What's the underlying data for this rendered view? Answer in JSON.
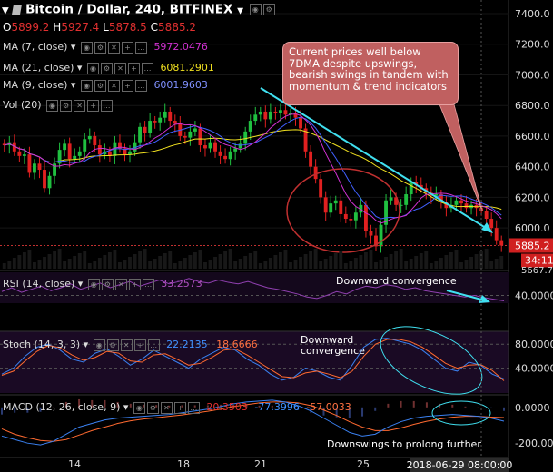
{
  "header": {
    "title": "Bitcoin / Dollar, 240, BITFINEX",
    "ohlc": [
      {
        "k": "O",
        "v": "5899.2"
      },
      {
        "k": "H",
        "v": "5927.4"
      },
      {
        "k": "L",
        "v": "5878.5"
      },
      {
        "k": "C",
        "v": "5885.2"
      }
    ]
  },
  "indicators": [
    {
      "label": "MA (7, close)",
      "value": "5972.0476",
      "color": "#d030d0"
    },
    {
      "label": "MA (21, close)",
      "value": "6081.2901",
      "color": "#f0e020"
    },
    {
      "label": "MA (9, close)",
      "value": "6001.9603",
      "color": "#4060ff"
    },
    {
      "label": "Vol (20)",
      "value": "",
      "color": "#d0d0d0"
    }
  ],
  "callout": "Current prices well below 7DMA despite upswings, bearish swings in tandem with momentum & trend indicators",
  "annotations": {
    "rsi": "Downward convergence",
    "stoch": "Downward convergence",
    "macd": "Downswings to prolong further"
  },
  "colors": {
    "bull": "#20c040",
    "bear": "#e02020",
    "arrow": "#40e0f0",
    "circle": "#c03030"
  },
  "chart_data": [
    {
      "type": "candlestick",
      "pane": "price",
      "ylim": [
        5500,
        7450
      ],
      "yticks": [
        "7400.0",
        "7200.0",
        "7000.0",
        "6800.0",
        "6600.0",
        "6400.0",
        "6200.0",
        "6000.0"
      ],
      "last_price": "5885.2",
      "countdown": "34:11",
      "cut_label": "5667.7",
      "xticks": [
        "14",
        "18",
        "21",
        "25"
      ],
      "time_label": "2018-06-29 08:00:00",
      "close": [
        6540,
        6560,
        6500,
        6470,
        6480,
        6360,
        6420,
        6380,
        6260,
        6340,
        6420,
        6510,
        6550,
        6450,
        6470,
        6500,
        6580,
        6600,
        6540,
        6480,
        6500,
        6470,
        6560,
        6520,
        6480,
        6500,
        6560,
        6660,
        6620,
        6700,
        6690,
        6720,
        6760,
        6700,
        6680,
        6600,
        6590,
        6630,
        6650,
        6540,
        6520,
        6560,
        6500,
        6470,
        6450,
        6500,
        6520,
        6550,
        6630,
        6700,
        6740,
        6760,
        6710,
        6760,
        6750,
        6770,
        6740,
        6750,
        6720,
        6650,
        6500,
        6400,
        6320,
        6200,
        6100,
        6160,
        6180,
        6090,
        6060,
        6050,
        6100,
        6150,
        5980,
        5950,
        5880,
        6020,
        6180,
        6200,
        6150,
        6150,
        6220,
        6300,
        6280,
        6260,
        6230,
        6210,
        6220,
        6170,
        6130,
        6150,
        6180,
        6160,
        6130,
        6150,
        6130,
        6110,
        6060,
        6000,
        5920,
        5885
      ],
      "ma7": 5972.0476,
      "ma21": 6081.2901,
      "ma9": 6001.9603
    },
    {
      "type": "line",
      "pane": "rsi",
      "title": "RSI (14, close)",
      "value": "33.2573",
      "yticks": [
        "40.0000"
      ],
      "ylim": [
        20,
        80
      ],
      "values": [
        45,
        50,
        44,
        48,
        52,
        46,
        50,
        55,
        48,
        52,
        56,
        50,
        54,
        58,
        52,
        56,
        60,
        55,
        58,
        62,
        58,
        56,
        60,
        57,
        55,
        58,
        54,
        50,
        48,
        45,
        42,
        38,
        36,
        40,
        45,
        42,
        48,
        52,
        50,
        54,
        52,
        48,
        50,
        46,
        44,
        42,
        40,
        38,
        40,
        37,
        35,
        33
      ]
    },
    {
      "type": "line",
      "pane": "stoch",
      "title": "Stoch (14, 3, 3)",
      "values_label": [
        "22.2135",
        "18.6666"
      ],
      "yticks": [
        "80.0000",
        "40.0000"
      ],
      "ylim": [
        0,
        100
      ],
      "series": [
        {
          "values": [
            30,
            40,
            60,
            75,
            80,
            70,
            55,
            50,
            65,
            72,
            60,
            45,
            55,
            70,
            60,
            50,
            40,
            55,
            65,
            75,
            70,
            55,
            45,
            30,
            20,
            25,
            40,
            35,
            25,
            20,
            45,
            75,
            88,
            90,
            85,
            80,
            70,
            55,
            40,
            35,
            50,
            45,
            30,
            22
          ]
        },
        {
          "values": [
            28,
            35,
            52,
            68,
            78,
            74,
            62,
            53,
            58,
            68,
            65,
            52,
            50,
            62,
            64,
            55,
            45,
            48,
            58,
            70,
            72,
            62,
            50,
            38,
            26,
            24,
            32,
            35,
            30,
            24,
            35,
            60,
            80,
            88,
            88,
            84,
            75,
            62,
            48,
            40,
            45,
            46,
            36,
            19
          ]
        }
      ]
    },
    {
      "type": "line",
      "pane": "macd",
      "title": "MACD (12, 26, close, 9)",
      "values_label": [
        "20.3503",
        "-77.3996",
        "-57.0033"
      ],
      "yticks": [
        "0.0000",
        "-200.0000"
      ],
      "ylim": [
        -260,
        50
      ],
      "series": [
        {
          "values": [
            -160,
            -180,
            -200,
            -210,
            -190,
            -150,
            -110,
            -90,
            -70,
            -60,
            -55,
            -50,
            -45,
            -40,
            -30,
            -20,
            -10,
            5,
            20,
            30,
            35,
            40,
            30,
            10,
            -20,
            -60,
            -100,
            -140,
            -160,
            -150,
            -110,
            -80,
            -60,
            -50,
            -45,
            -40,
            -45,
            -50,
            -60,
            -77
          ]
        },
        {
          "values": [
            -120,
            -150,
            -170,
            -185,
            -190,
            -180,
            -155,
            -130,
            -110,
            -90,
            -75,
            -65,
            -58,
            -50,
            -42,
            -32,
            -22,
            -10,
            5,
            15,
            25,
            30,
            30,
            25,
            10,
            -15,
            -45,
            -80,
            -110,
            -130,
            -130,
            -115,
            -95,
            -78,
            -65,
            -55,
            -50,
            -50,
            -54,
            -57
          ]
        }
      ]
    }
  ]
}
